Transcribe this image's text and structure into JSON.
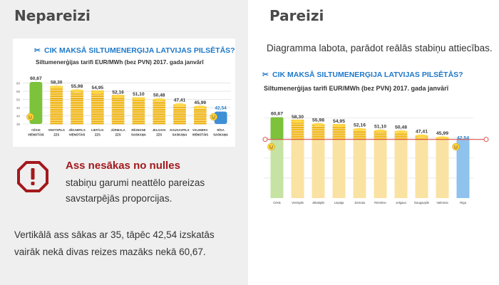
{
  "left": {
    "heading": "Nepareizi",
    "warning_title": "Ass nesākas no nulles",
    "warning_text": "stabiņu garumi neattēlo pareizas savstarpējās proporcijas.",
    "explanation": "Vertikālā ass sākas ar 35, tāpēc 42,54 izskatās vairāk nekā divas reizes mazāks nekā 60,67."
  },
  "right": {
    "heading": "Pareizi",
    "description": "Diagramma labota, parādot reālās stabiņu attiecības."
  },
  "colors": {
    "title_blue": "#1e78c8",
    "coin_yellow": "#f6c21b",
    "coin_shade": "#e09a12",
    "green": "#7cc23a",
    "blue_bar": "#8fc3ee",
    "warning_red": "#a3191c",
    "zero_line": "#d9534f"
  },
  "chart_data": [
    {
      "type": "bar",
      "title": "CIK MAKSĀ SILTUMENERĢIJA LATVIJAS PILSĒTĀS?",
      "subtitle": "Siltumenerģijas tarifi EUR/MWh (bez PVN) 2017. gada janvārī",
      "categories": [
        "CĒSIS",
        "VENTSPILS",
        "JĒKABPILS",
        "LIEPĀJA",
        "JŪRMALA",
        "RĒZEKNE",
        "JELGAVA",
        "DAUGAVPILS",
        "VALMIERA",
        "RĪGA"
      ],
      "subcategories": [
        "VIENOTĀIS",
        "ZZS",
        "VIENOTĀIS",
        "ZZS",
        "ZZS",
        "SASKAŅA",
        "ZZS",
        "SASKAŅA",
        "VIENOTĀIS",
        "SASKAŅA"
      ],
      "values": [
        60.67,
        58.3,
        55.98,
        54.95,
        52.16,
        51.1,
        50.48,
        47.41,
        45.99,
        42.54
      ],
      "value_labels": [
        "60,67",
        "58,30",
        "55,98",
        "54,95",
        "52,16",
        "51,10",
        "50,48",
        "47,41",
        "45,99",
        "42,54"
      ],
      "ylim": [
        35,
        62
      ],
      "yticks": [
        "60",
        "55",
        "50",
        "45",
        "40",
        "35"
      ],
      "grid": true
    },
    {
      "type": "bar",
      "title": "CIK MAKSĀ SILTUMENERĢIJA LATVIJAS PILSĒTĀS?",
      "subtitle": "Siltumenerģijas tarifi EUR/MWh (bez PVN) 2017. gada janvārī",
      "categories": [
        "Cēsis",
        "Ventspils",
        "Jēkabpils",
        "Liepāja",
        "Jūrmala",
        "Rēzekne",
        "Jelgava",
        "Daugavpils",
        "Valmiera",
        "Rīga"
      ],
      "values": [
        60.67,
        58.3,
        55.98,
        54.95,
        52.16,
        51.1,
        50.48,
        47.41,
        45.99,
        42.54
      ],
      "value_labels": [
        "60,67",
        "58,30",
        "55,98",
        "54,95",
        "52,16",
        "51,10",
        "50,48",
        "47,41",
        "45,99",
        "42,54"
      ],
      "ylim": [
        0,
        62
      ],
      "grid": true
    }
  ]
}
